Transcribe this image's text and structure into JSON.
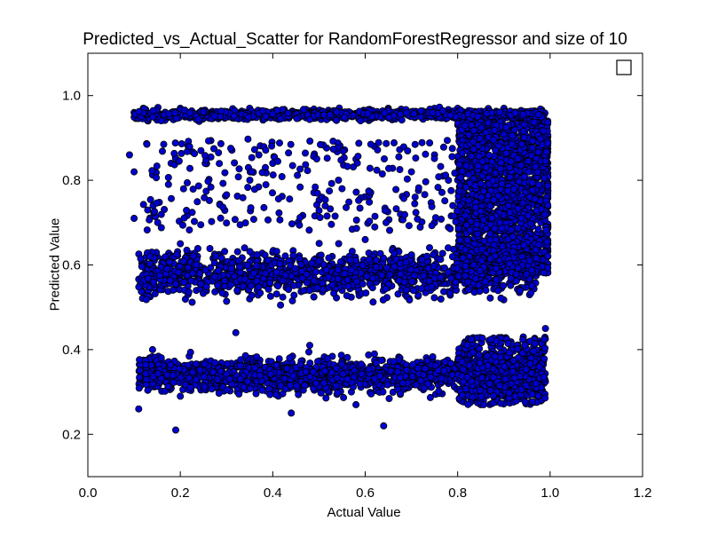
{
  "chart_data": {
    "type": "scatter",
    "title": "Predicted_vs_Actual_Scatter for RandomForestRegressor and size of 10",
    "xlabel": "Actual Value",
    "ylabel": "Predicted Value",
    "xlim": [
      0.0,
      1.2
    ],
    "ylim": [
      0.1,
      1.1
    ],
    "xticks": [
      "0.0",
      "0.2",
      "0.4",
      "0.6",
      "0.8",
      "1.0",
      "1.2"
    ],
    "yticks": [
      "0.2",
      "0.4",
      "0.6",
      "0.8",
      "1.0"
    ],
    "xtick_values": [
      0.0,
      0.2,
      0.4,
      0.6,
      0.8,
      1.0,
      1.2
    ],
    "ytick_values": [
      0.2,
      0.4,
      0.6,
      0.8,
      1.0
    ],
    "grid": false,
    "legend": {
      "placement": "top-right",
      "entries": [
        ""
      ]
    },
    "marker_color": "#0000cc",
    "marker_edge_color": "#000000",
    "description": "Dense scatter of several thousand points spanning actual 0.09-1.0 and predicted 0.2-0.98; densest cluster at actual 0.8-1.0, predicted 0.6-0.95; dense band near predicted 0.95",
    "series": [
      {
        "name": "",
        "points": [
          [
            0.1,
            0.96
          ],
          [
            0.11,
            0.95
          ],
          [
            0.12,
            0.97
          ],
          [
            0.13,
            0.94
          ],
          [
            0.15,
            0.96
          ],
          [
            0.2,
            0.97
          ],
          [
            0.25,
            0.95
          ],
          [
            0.3,
            0.96
          ],
          [
            0.35,
            0.97
          ],
          [
            0.4,
            0.95
          ],
          [
            0.45,
            0.96
          ],
          [
            0.5,
            0.95
          ],
          [
            0.55,
            0.96
          ],
          [
            0.6,
            0.96
          ],
          [
            0.65,
            0.97
          ],
          [
            0.7,
            0.96
          ],
          [
            0.75,
            0.97
          ],
          [
            0.8,
            0.97
          ],
          [
            0.85,
            0.96
          ],
          [
            0.9,
            0.97
          ],
          [
            0.95,
            0.96
          ],
          [
            0.98,
            0.95
          ],
          [
            0.09,
            0.86
          ],
          [
            0.1,
            0.82
          ],
          [
            0.1,
            0.71
          ],
          [
            0.18,
            0.84
          ],
          [
            0.22,
            0.87
          ],
          [
            0.37,
            0.86
          ],
          [
            0.4,
            0.84
          ],
          [
            0.58,
            0.85
          ],
          [
            0.62,
            0.88
          ],
          [
            0.7,
            0.82
          ],
          [
            0.75,
            0.86
          ],
          [
            0.78,
            0.8
          ],
          [
            0.15,
            0.62
          ],
          [
            0.18,
            0.58
          ],
          [
            0.2,
            0.65
          ],
          [
            0.25,
            0.55
          ],
          [
            0.3,
            0.6
          ],
          [
            0.35,
            0.52
          ],
          [
            0.4,
            0.63
          ],
          [
            0.45,
            0.57
          ],
          [
            0.5,
            0.61
          ],
          [
            0.55,
            0.54
          ],
          [
            0.6,
            0.66
          ],
          [
            0.65,
            0.58
          ],
          [
            0.7,
            0.62
          ],
          [
            0.75,
            0.7
          ],
          [
            0.82,
            0.85
          ],
          [
            0.85,
            0.78
          ],
          [
            0.88,
            0.72
          ],
          [
            0.9,
            0.8
          ],
          [
            0.92,
            0.66
          ],
          [
            0.95,
            0.75
          ],
          [
            0.98,
            0.7
          ],
          [
            0.83,
            0.62
          ],
          [
            0.87,
            0.9
          ],
          [
            0.93,
            0.88
          ],
          [
            0.96,
            0.6
          ],
          [
            0.14,
            0.4
          ],
          [
            0.17,
            0.33
          ],
          [
            0.2,
            0.29
          ],
          [
            0.24,
            0.36
          ],
          [
            0.28,
            0.31
          ],
          [
            0.32,
            0.44
          ],
          [
            0.36,
            0.38
          ],
          [
            0.42,
            0.33
          ],
          [
            0.48,
            0.41
          ],
          [
            0.52,
            0.35
          ],
          [
            0.57,
            0.3
          ],
          [
            0.62,
            0.39
          ],
          [
            0.66,
            0.34
          ],
          [
            0.72,
            0.37
          ],
          [
            0.78,
            0.32
          ],
          [
            0.82,
            0.3
          ],
          [
            0.86,
            0.33
          ],
          [
            0.9,
            0.29
          ],
          [
            0.94,
            0.35
          ],
          [
            0.98,
            0.31
          ],
          [
            0.99,
            0.45
          ],
          [
            0.19,
            0.21
          ],
          [
            0.64,
            0.22
          ],
          [
            0.44,
            0.25
          ],
          [
            0.11,
            0.26
          ],
          [
            0.85,
            0.27
          ],
          [
            0.58,
            0.27
          ]
        ]
      }
    ]
  }
}
